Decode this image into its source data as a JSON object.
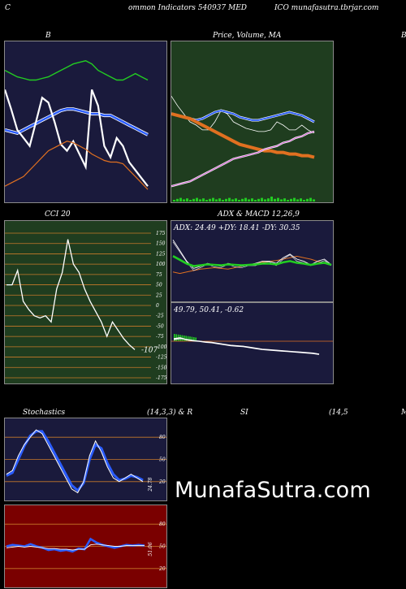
{
  "header": {
    "left": "C",
    "middle": "ommon  Indicators 540937 MED",
    "right": "ICO munafasutra.tbrjar.com"
  },
  "panels": {
    "bb_title": "B",
    "price_title": "Price,  Volume,  MA",
    "right_edge": "B",
    "cci_title": "CCI 20",
    "adx_title": "ADX  & MACD 12,26,9",
    "adx_values": "ADX: 24.49 +DY: 18.41 -DY: 30.35",
    "macd_values": "49.79,  50.41,  -0.62",
    "stoch_title_a": "Stochastics",
    "stoch_title_b": "(14,3,3) & R",
    "stoch_title_c": "SI",
    "stoch_title_d": "(14,5",
    "right_edge_lower": "M"
  },
  "watermark": "MunafaSutra.com",
  "colors": {
    "bb_bg": "#1a1a3c",
    "price_bg": "#1f3d1f",
    "cci_bg": "#1f3d1f",
    "adx_bg": "#1a1a3c",
    "stoch_bg": "#1a1a3c",
    "rsi_bg": "#7a0000",
    "orange": "#e07020",
    "blue": "#2a5cff",
    "green_line": "#22cc22"
  },
  "chart_data": [
    {
      "type": "line",
      "name": "bollinger",
      "series": [
        {
          "values": [
            82,
            80,
            78,
            77,
            76,
            76,
            77,
            78,
            80,
            82,
            84,
            86,
            87,
            88,
            86,
            82,
            80,
            78,
            76,
            76,
            78,
            80,
            78,
            76
          ]
        },
        {
          "values": [
            45,
            44,
            43,
            45,
            47,
            49,
            51,
            53,
            55,
            57,
            58,
            58,
            57,
            56,
            55,
            55,
            54,
            54,
            52,
            50,
            48,
            46,
            44,
            42
          ]
        },
        {
          "values": [
            70,
            58,
            45,
            40,
            35,
            50,
            65,
            62,
            50,
            36,
            32,
            38,
            30,
            22,
            70,
            60,
            35,
            28,
            40,
            35,
            25,
            20,
            15,
            10
          ]
        },
        {
          "values": [
            10,
            12,
            14,
            16,
            20,
            24,
            28,
            32,
            34,
            36,
            38,
            37,
            35,
            33,
            30,
            28,
            26,
            25,
            25,
            24,
            20,
            16,
            12,
            8
          ]
        }
      ]
    },
    {
      "type": "line",
      "name": "price-ma",
      "series": [
        {
          "values": [
            66,
            60,
            55,
            50,
            48,
            45,
            45,
            50,
            57,
            55,
            50,
            48,
            46,
            45,
            44,
            44,
            45,
            50,
            48,
            45,
            45,
            48,
            45,
            43
          ]
        },
        {
          "values": [
            55,
            54,
            53,
            52,
            51,
            52,
            54,
            56,
            57,
            56,
            55,
            53,
            52,
            51,
            51,
            52,
            53,
            54,
            55,
            56,
            55,
            54,
            52,
            50
          ]
        },
        {
          "values": [
            55,
            54,
            53,
            52,
            50,
            48,
            46,
            44,
            42,
            40,
            38,
            36,
            35,
            34,
            33,
            32,
            32,
            31,
            31,
            30,
            30,
            29,
            29,
            28
          ]
        },
        {
          "values": [
            10,
            11,
            12,
            13,
            15,
            17,
            19,
            21,
            23,
            25,
            27,
            28,
            29,
            30,
            31,
            33,
            34,
            35,
            37,
            38,
            40,
            41,
            43,
            44
          ]
        }
      ]
    },
    {
      "type": "line",
      "name": "cci",
      "ylim": [
        -175,
        175
      ],
      "yticks": [
        175,
        150,
        125,
        100,
        75,
        50,
        25,
        0,
        -25,
        -50,
        -75,
        -100,
        -125,
        -150,
        -175
      ],
      "last_label": "-107",
      "values": [
        50,
        50,
        85,
        10,
        -10,
        -25,
        -30,
        -25,
        -40,
        40,
        80,
        160,
        100,
        80,
        40,
        10,
        -15,
        -40,
        -75,
        -40,
        -60,
        -80,
        -95,
        -107
      ]
    },
    {
      "type": "line",
      "name": "adx",
      "series": [
        {
          "values": [
            85,
            70,
            55,
            45,
            48,
            52,
            50,
            48,
            52,
            50,
            48,
            50,
            52,
            55,
            55,
            52,
            60,
            65,
            58,
            55,
            50,
            55,
            58,
            50
          ]
        },
        {
          "values": [
            40,
            38,
            40,
            42,
            44,
            45,
            46,
            45,
            44,
            46,
            48,
            50,
            52,
            54,
            55,
            56,
            58,
            60,
            62,
            60,
            58,
            55,
            52,
            50
          ]
        }
      ]
    },
    {
      "type": "line",
      "name": "macd",
      "series": [
        {
          "values": [
            60,
            62,
            58,
            56,
            55,
            53,
            52,
            50,
            48,
            46,
            45,
            44,
            42,
            40,
            38,
            37,
            36,
            35,
            34,
            33,
            32,
            31,
            30,
            28
          ]
        },
        {
          "values": [
            58,
            60,
            59,
            57,
            55,
            54,
            53,
            51,
            49,
            47,
            46,
            45,
            43,
            41,
            39,
            38,
            37,
            36,
            35,
            34,
            33,
            32,
            31,
            29
          ]
        }
      ]
    },
    {
      "type": "line",
      "name": "stochastics",
      "yticks": [
        80,
        50,
        20
      ],
      "last_label": "24.78",
      "series": [
        {
          "values": [
            30,
            35,
            55,
            70,
            80,
            90,
            85,
            70,
            55,
            40,
            25,
            10,
            5,
            20,
            55,
            75,
            60,
            40,
            25,
            20,
            25,
            30,
            25,
            20
          ]
        },
        {
          "values": [
            28,
            32,
            50,
            68,
            82,
            88,
            88,
            75,
            60,
            45,
            30,
            15,
            8,
            18,
            50,
            70,
            65,
            45,
            30,
            22,
            24,
            28,
            26,
            22
          ]
        }
      ]
    },
    {
      "type": "line",
      "name": "rsi",
      "yticks": [
        80,
        50,
        20
      ],
      "last_label": "51.06",
      "series": [
        {
          "values": [
            50,
            52,
            51,
            50,
            53,
            50,
            48,
            45,
            46,
            44,
            45,
            43,
            47,
            46,
            60,
            55,
            52,
            50,
            48,
            50,
            52,
            51,
            52,
            51
          ]
        },
        {
          "values": [
            48,
            49,
            50,
            49,
            50,
            49,
            48,
            47,
            47,
            46,
            46,
            45,
            46,
            46,
            52,
            53,
            52,
            51,
            50,
            50,
            51,
            51,
            51,
            51
          ]
        }
      ]
    }
  ]
}
